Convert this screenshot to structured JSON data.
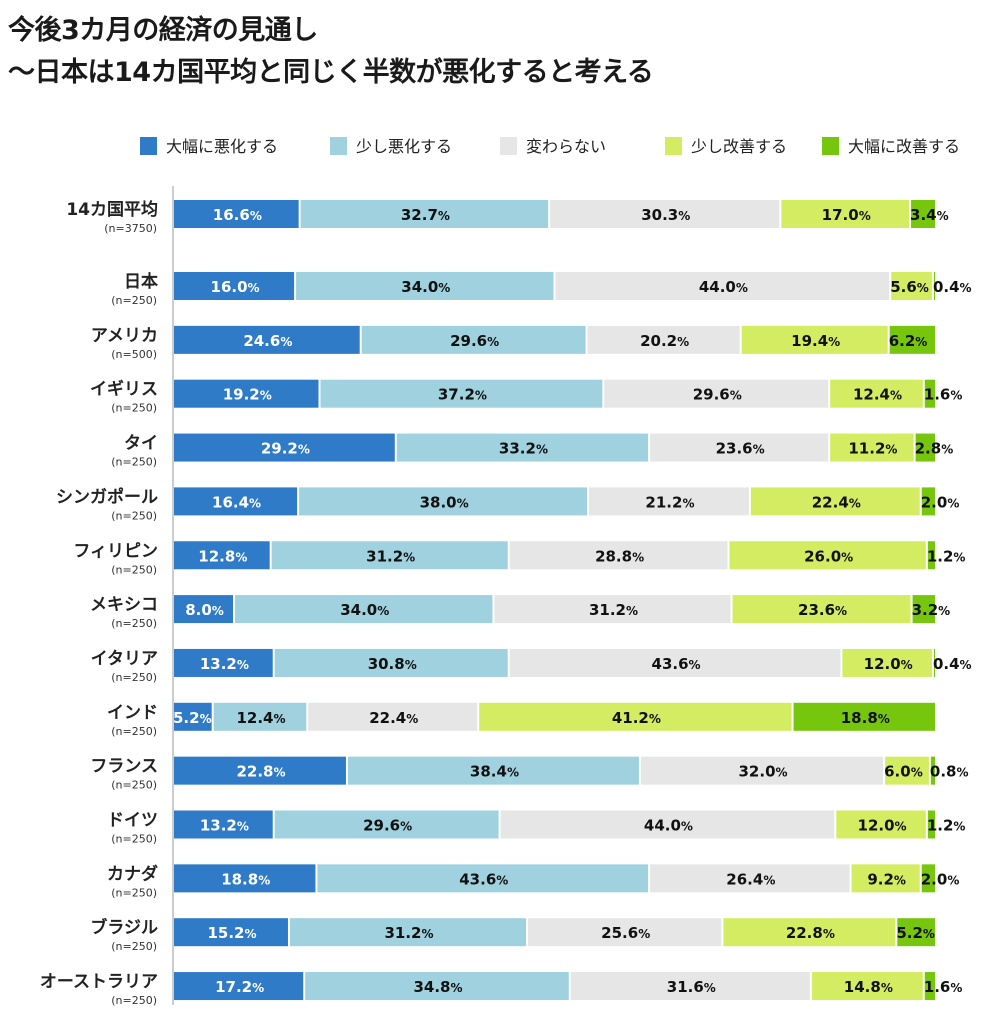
{
  "chart_data": {
    "type": "bar",
    "orientation": "horizontal",
    "stacked": true,
    "title": "今後3カ月の経済の見通し",
    "subtitle": "～日本は14カ国平均と同じく半数が悪化すると考える",
    "xlim": [
      0,
      100
    ],
    "legend_position": "top",
    "grid": false,
    "categories": [
      "14カ国平均",
      "日本",
      "アメリカ",
      "イギリス",
      "タイ",
      "シンガポール",
      "フィリピン",
      "メキシコ",
      "イタリア",
      "インド",
      "フランス",
      "ドイツ",
      "カナダ",
      "ブラジル",
      "オーストラリア"
    ],
    "sample_sizes": [
      "(n=3750)",
      "(n=250)",
      "(n=500)",
      "(n=250)",
      "(n=250)",
      "(n=250)",
      "(n=250)",
      "(n=250)",
      "(n=250)",
      "(n=250)",
      "(n=250)",
      "(n=250)",
      "(n=250)",
      "(n=250)",
      "(n=250)"
    ],
    "series": [
      {
        "name": "大幅に悪化する",
        "color": "#2f7bc8",
        "values": [
          16.6,
          16.0,
          24.6,
          19.2,
          29.2,
          16.4,
          12.8,
          8.0,
          13.2,
          5.2,
          22.8,
          13.2,
          18.8,
          15.2,
          17.2
        ]
      },
      {
        "name": "少し悪化する",
        "color": "#9fd1de",
        "values": [
          32.7,
          34.0,
          29.6,
          37.2,
          33.2,
          38.0,
          31.2,
          34.0,
          30.8,
          12.4,
          38.4,
          29.6,
          43.6,
          31.2,
          34.8
        ]
      },
      {
        "name": "変わらない",
        "color": "#e6e6e6",
        "values": [
          30.3,
          44.0,
          20.2,
          29.6,
          23.6,
          21.2,
          28.8,
          31.2,
          43.6,
          22.4,
          32.0,
          44.0,
          26.4,
          25.6,
          31.6
        ]
      },
      {
        "name": "少し改善する",
        "color": "#d4ec62",
        "values": [
          17.0,
          5.6,
          19.4,
          12.4,
          11.2,
          22.4,
          26.0,
          23.6,
          12.0,
          41.2,
          6.0,
          12.0,
          9.2,
          22.8,
          14.8
        ]
      },
      {
        "name": "大幅に改善する",
        "color": "#76c60e",
        "values": [
          3.4,
          0.4,
          6.2,
          1.6,
          2.8,
          2.0,
          1.2,
          3.2,
          0.4,
          18.8,
          0.8,
          1.2,
          2.0,
          5.2,
          1.6
        ]
      }
    ],
    "value_suffix": "%"
  }
}
